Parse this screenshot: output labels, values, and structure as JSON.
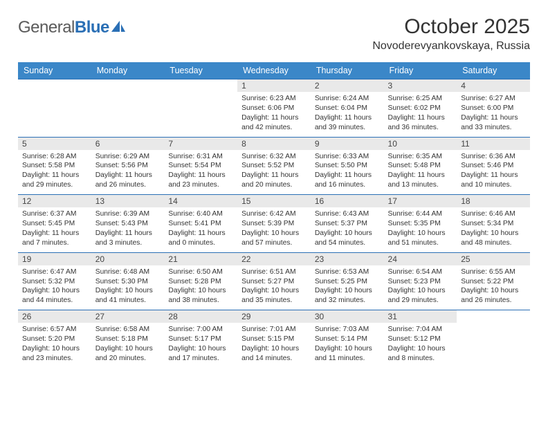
{
  "brand": {
    "name_gray": "General",
    "name_blue": "Blue"
  },
  "title": "October 2025",
  "location": "Novoderevyankovskaya, Russia",
  "colors": {
    "header_bg": "#3b87c8",
    "header_text": "#ffffff",
    "daynum_bg": "#e9e9e9",
    "rule": "#2a6fb5",
    "text": "#333333",
    "logo_gray": "#5a5a5a",
    "logo_blue": "#2a6fb5"
  },
  "day_headers": [
    "Sunday",
    "Monday",
    "Tuesday",
    "Wednesday",
    "Thursday",
    "Friday",
    "Saturday"
  ],
  "weeks": [
    {
      "nums": [
        "",
        "",
        "",
        "1",
        "2",
        "3",
        "4"
      ],
      "cells": [
        null,
        null,
        null,
        {
          "sunrise": "6:23 AM",
          "sunset": "6:06 PM",
          "daylight": "11 hours and 42 minutes."
        },
        {
          "sunrise": "6:24 AM",
          "sunset": "6:04 PM",
          "daylight": "11 hours and 39 minutes."
        },
        {
          "sunrise": "6:25 AM",
          "sunset": "6:02 PM",
          "daylight": "11 hours and 36 minutes."
        },
        {
          "sunrise": "6:27 AM",
          "sunset": "6:00 PM",
          "daylight": "11 hours and 33 minutes."
        }
      ]
    },
    {
      "nums": [
        "5",
        "6",
        "7",
        "8",
        "9",
        "10",
        "11"
      ],
      "cells": [
        {
          "sunrise": "6:28 AM",
          "sunset": "5:58 PM",
          "daylight": "11 hours and 29 minutes."
        },
        {
          "sunrise": "6:29 AM",
          "sunset": "5:56 PM",
          "daylight": "11 hours and 26 minutes."
        },
        {
          "sunrise": "6:31 AM",
          "sunset": "5:54 PM",
          "daylight": "11 hours and 23 minutes."
        },
        {
          "sunrise": "6:32 AM",
          "sunset": "5:52 PM",
          "daylight": "11 hours and 20 minutes."
        },
        {
          "sunrise": "6:33 AM",
          "sunset": "5:50 PM",
          "daylight": "11 hours and 16 minutes."
        },
        {
          "sunrise": "6:35 AM",
          "sunset": "5:48 PM",
          "daylight": "11 hours and 13 minutes."
        },
        {
          "sunrise": "6:36 AM",
          "sunset": "5:46 PM",
          "daylight": "11 hours and 10 minutes."
        }
      ]
    },
    {
      "nums": [
        "12",
        "13",
        "14",
        "15",
        "16",
        "17",
        "18"
      ],
      "cells": [
        {
          "sunrise": "6:37 AM",
          "sunset": "5:45 PM",
          "daylight": "11 hours and 7 minutes."
        },
        {
          "sunrise": "6:39 AM",
          "sunset": "5:43 PM",
          "daylight": "11 hours and 3 minutes."
        },
        {
          "sunrise": "6:40 AM",
          "sunset": "5:41 PM",
          "daylight": "11 hours and 0 minutes."
        },
        {
          "sunrise": "6:42 AM",
          "sunset": "5:39 PM",
          "daylight": "10 hours and 57 minutes."
        },
        {
          "sunrise": "6:43 AM",
          "sunset": "5:37 PM",
          "daylight": "10 hours and 54 minutes."
        },
        {
          "sunrise": "6:44 AM",
          "sunset": "5:35 PM",
          "daylight": "10 hours and 51 minutes."
        },
        {
          "sunrise": "6:46 AM",
          "sunset": "5:34 PM",
          "daylight": "10 hours and 48 minutes."
        }
      ]
    },
    {
      "nums": [
        "19",
        "20",
        "21",
        "22",
        "23",
        "24",
        "25"
      ],
      "cells": [
        {
          "sunrise": "6:47 AM",
          "sunset": "5:32 PM",
          "daylight": "10 hours and 44 minutes."
        },
        {
          "sunrise": "6:48 AM",
          "sunset": "5:30 PM",
          "daylight": "10 hours and 41 minutes."
        },
        {
          "sunrise": "6:50 AM",
          "sunset": "5:28 PM",
          "daylight": "10 hours and 38 minutes."
        },
        {
          "sunrise": "6:51 AM",
          "sunset": "5:27 PM",
          "daylight": "10 hours and 35 minutes."
        },
        {
          "sunrise": "6:53 AM",
          "sunset": "5:25 PM",
          "daylight": "10 hours and 32 minutes."
        },
        {
          "sunrise": "6:54 AM",
          "sunset": "5:23 PM",
          "daylight": "10 hours and 29 minutes."
        },
        {
          "sunrise": "6:55 AM",
          "sunset": "5:22 PM",
          "daylight": "10 hours and 26 minutes."
        }
      ]
    },
    {
      "nums": [
        "26",
        "27",
        "28",
        "29",
        "30",
        "31",
        ""
      ],
      "cells": [
        {
          "sunrise": "6:57 AM",
          "sunset": "5:20 PM",
          "daylight": "10 hours and 23 minutes."
        },
        {
          "sunrise": "6:58 AM",
          "sunset": "5:18 PM",
          "daylight": "10 hours and 20 minutes."
        },
        {
          "sunrise": "7:00 AM",
          "sunset": "5:17 PM",
          "daylight": "10 hours and 17 minutes."
        },
        {
          "sunrise": "7:01 AM",
          "sunset": "5:15 PM",
          "daylight": "10 hours and 14 minutes."
        },
        {
          "sunrise": "7:03 AM",
          "sunset": "5:14 PM",
          "daylight": "10 hours and 11 minutes."
        },
        {
          "sunrise": "7:04 AM",
          "sunset": "5:12 PM",
          "daylight": "10 hours and 8 minutes."
        },
        null
      ]
    }
  ],
  "labels": {
    "sunrise": "Sunrise:",
    "sunset": "Sunset:",
    "daylight": "Daylight:"
  }
}
